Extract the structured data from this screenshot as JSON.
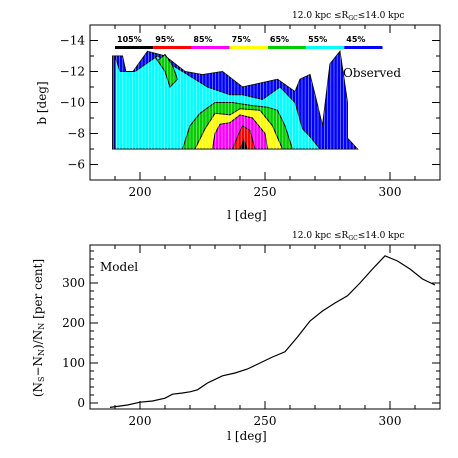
{
  "chart_data": [
    {
      "type": "heatmap",
      "title": "12.0 kpc ≤R_GC≤14.0 kpc",
      "annotation": "Observed",
      "xlabel": "l [deg]",
      "ylabel": "b [deg]",
      "xlim": [
        180,
        320
      ],
      "ylim": [
        -5,
        -15
      ],
      "xticks": [
        200,
        250,
        300
      ],
      "yticks": [
        -14,
        -12,
        -10,
        -8,
        -6
      ],
      "legend": {
        "placement": "top",
        "levels": [
          "105%",
          "95%",
          "85%",
          "75%",
          "65%",
          "55%",
          "45%"
        ],
        "colors": [
          "#000000",
          "#ff0000",
          "#ff00ff",
          "#ffff00",
          "#00cc00",
          "#00ffff",
          "#0000ff"
        ]
      },
      "contours": [
        {
          "level": "45%",
          "color": "#0000ff",
          "points": [
            [
              189,
              -13
            ],
            [
              193,
              -13
            ],
            [
              195,
              -11.5
            ],
            [
              203,
              -13.3
            ],
            [
              210,
              -13
            ],
            [
              218,
              -12
            ],
            [
              225,
              -11.8
            ],
            [
              233,
              -12
            ],
            [
              241,
              -11
            ],
            [
              255,
              -11.5
            ],
            [
              262,
              -10.7
            ],
            [
              264,
              -11.5
            ],
            [
              268,
              -11.8
            ],
            [
              270,
              -10.5
            ],
            [
              273,
              -8.5
            ],
            [
              276,
              -12.5
            ],
            [
              280,
              -13.3
            ],
            [
              283,
              -10
            ],
            [
              283,
              -7.7
            ],
            [
              287,
              -7
            ],
            [
              189,
              -7
            ]
          ]
        },
        {
          "level": "55%",
          "color": "#00ffff",
          "points": [
            [
              190,
              -13
            ],
            [
              192,
              -12
            ],
            [
              198,
              -12
            ],
            [
              207,
              -13
            ],
            [
              212,
              -12.5
            ],
            [
              219,
              -11.8
            ],
            [
              227,
              -11
            ],
            [
              236,
              -10.5
            ],
            [
              241,
              -10.5
            ],
            [
              249,
              -10.2
            ],
            [
              256,
              -11
            ],
            [
              262,
              -10
            ],
            [
              265,
              -8.3
            ],
            [
              268,
              -7.8
            ],
            [
              272,
              -7
            ],
            [
              190,
              -7
            ]
          ]
        },
        {
          "level": "65%",
          "color": "#00cc00",
          "points": [
            [
              207,
              -12.7
            ],
            [
              210,
              -13.1
            ],
            [
              213,
              -12.4
            ],
            [
              215,
              -11.5
            ],
            [
              212,
              -11
            ],
            [
              210,
              -12
            ],
            [
              205,
              -13.2
            ]
          ],
          "closed": true
        },
        {
          "level": "65% ",
          "color": "#00cc00",
          "points": [
            [
              217,
              -7
            ],
            [
              220,
              -8.5
            ],
            [
              224,
              -9.3
            ],
            [
              230,
              -10
            ],
            [
              237,
              -10
            ],
            [
              245,
              -9.8
            ],
            [
              251,
              -9.7
            ],
            [
              255,
              -9.5
            ],
            [
              258,
              -8.5
            ],
            [
              261,
              -7
            ]
          ]
        },
        {
          "level": "75%",
          "color": "#ffff00",
          "points": [
            [
              222,
              -7
            ],
            [
              226,
              -8.3
            ],
            [
              230,
              -9.3
            ],
            [
              236,
              -9.2
            ],
            [
              240,
              -9.6
            ],
            [
              248,
              -9.5
            ],
            [
              253,
              -8.5
            ],
            [
              257,
              -7
            ]
          ]
        },
        {
          "level": "85%",
          "color": "#ff00ff",
          "points": [
            [
              229,
              -7
            ],
            [
              230,
              -8
            ],
            [
              232,
              -8.6
            ],
            [
              236,
              -8.7
            ],
            [
              240,
              -9.2
            ],
            [
              245,
              -9
            ],
            [
              250,
              -8
            ],
            [
              251,
              -7
            ]
          ]
        },
        {
          "level": "95%",
          "color": "#ff0000",
          "points": [
            [
              237,
              -7
            ],
            [
              239,
              -7.8
            ],
            [
              241,
              -8.5
            ],
            [
              244,
              -8.2
            ],
            [
              246,
              -7
            ]
          ]
        },
        {
          "level": "105%",
          "color": "#000000",
          "points": [
            [
              240,
              -7
            ],
            [
              241.5,
              -7.6
            ],
            [
              243,
              -7
            ]
          ]
        }
      ]
    },
    {
      "type": "line",
      "title": "12.0 kpc ≤R_GC≤14.0 kpc",
      "annotation": "Model",
      "xlabel": "l [deg]",
      "ylabel": "(N_S−N_N)/N_N [per cent]",
      "xlim": [
        180,
        320
      ],
      "ylim": [
        -15,
        395
      ],
      "xticks": [
        200,
        250,
        300
      ],
      "yticks": [
        0,
        100,
        200,
        300
      ],
      "series": [
        {
          "x": [
            188,
            195,
            200,
            205,
            210,
            213,
            217,
            220,
            223,
            227,
            233,
            238,
            243,
            248,
            253,
            258,
            263,
            268,
            273,
            278,
            283,
            288,
            293,
            298,
            303,
            308,
            313,
            318
          ],
          "y": [
            -11,
            -5,
            2,
            5,
            12,
            22,
            25,
            28,
            33,
            50,
            68,
            75,
            85,
            100,
            115,
            128,
            165,
            205,
            230,
            250,
            268,
            300,
            335,
            368,
            355,
            335,
            310,
            295
          ]
        }
      ]
    }
  ],
  "plot1": {
    "title_main": "12.0 kpc ≤R",
    "title_sub": "GC",
    "title_end": "≤14.0 kpc",
    "annotation": "Observed",
    "xlabel": "l [deg]",
    "ylabel": "b [deg]"
  },
  "plot2": {
    "title_main": "12.0 kpc ≤R",
    "title_sub": "GC",
    "title_end": "≤14.0 kpc",
    "annotation": "Model",
    "xlabel": "l [deg]",
    "ylabel_pre": "(N",
    "ylabel_s": "S",
    "ylabel_mid": "−N",
    "ylabel_n1": "N",
    "ylabel_div": ")/N",
    "ylabel_n2": "N",
    "ylabel_post": " [per cent]"
  }
}
